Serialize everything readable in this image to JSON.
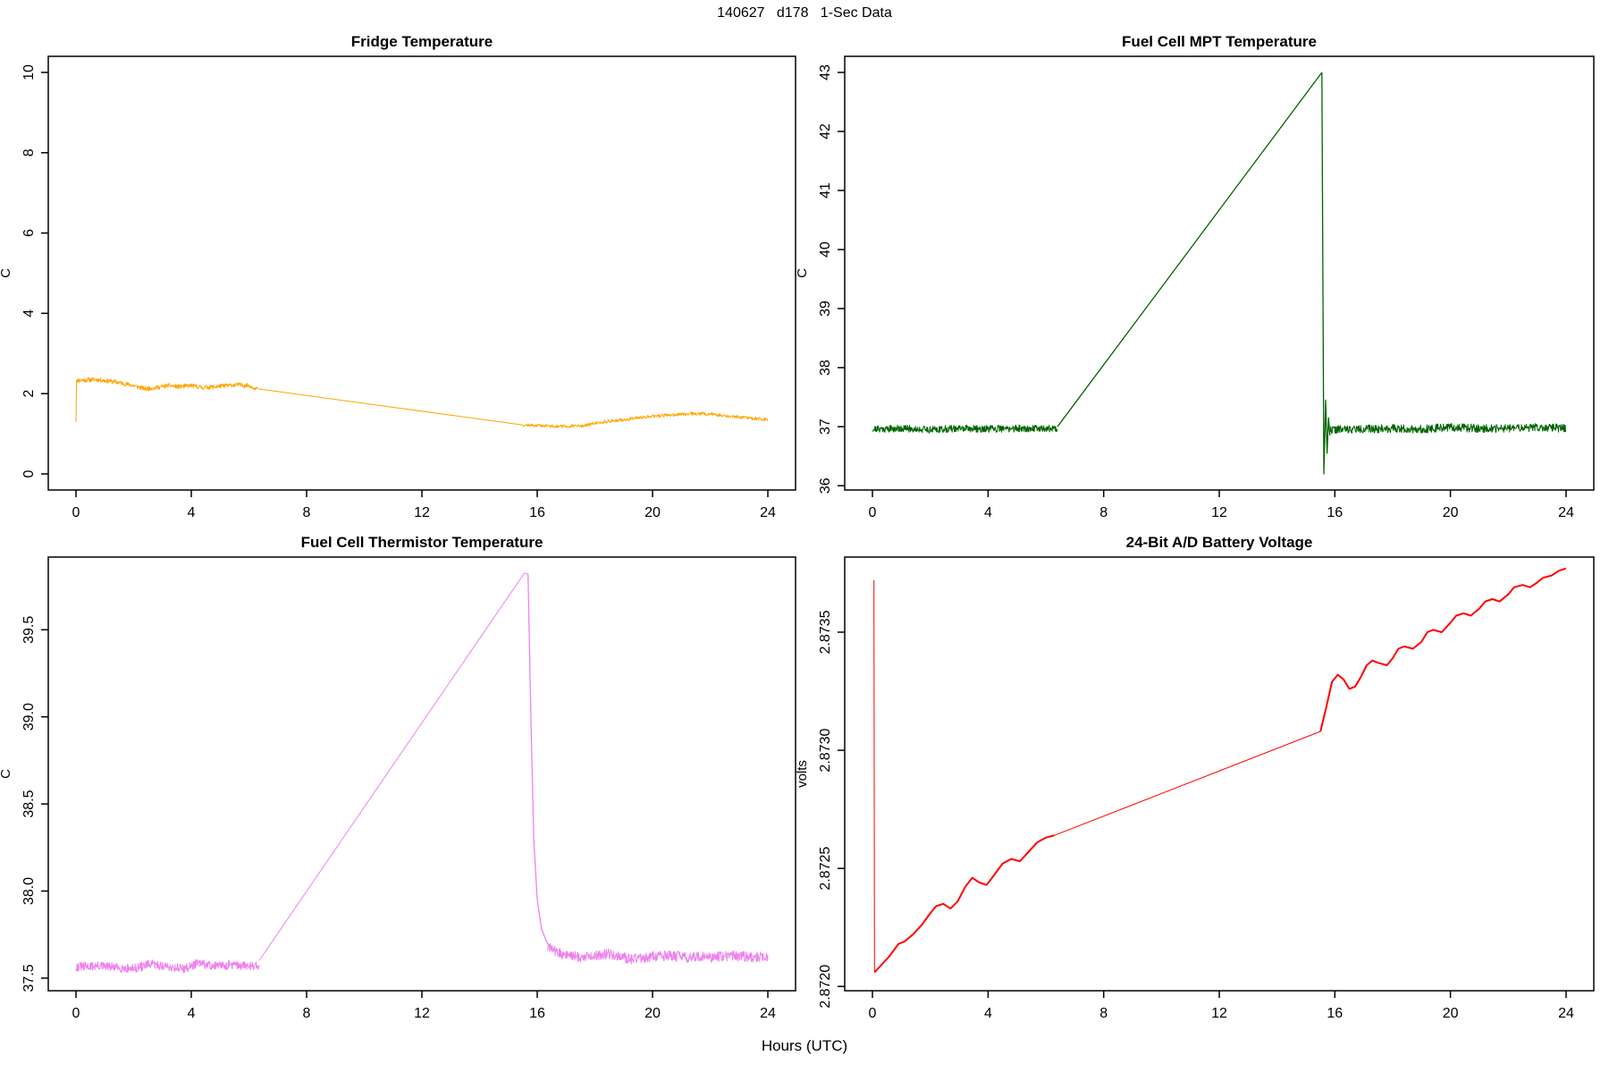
{
  "header": {
    "title": "140627   d178   1-Sec Data"
  },
  "figure": {
    "xlabel": "Hours (UTC)"
  },
  "chart_data": [
    {
      "type": "line",
      "title": "Fridge Temperature",
      "ylabel": "C",
      "color": "#FFA500",
      "xrange": [
        0,
        24
      ],
      "yrange": [
        0,
        10
      ],
      "xticks": [
        0,
        4,
        8,
        12,
        16,
        20,
        24
      ],
      "yticks": [
        {
          "v": 0,
          "l": "0"
        },
        {
          "v": 2,
          "l": "2"
        },
        {
          "v": 4,
          "l": "4"
        },
        {
          "v": 6,
          "l": "6"
        },
        {
          "v": 8,
          "l": "8"
        },
        {
          "v": 10,
          "l": "10"
        }
      ],
      "segments": [
        {
          "kind": "line",
          "width": 1,
          "points": [
            [
              0,
              1.3
            ],
            [
              0.02,
              2.33
            ]
          ]
        },
        {
          "kind": "noise",
          "x0": 0,
          "x1": 6.3,
          "amp": 0.055,
          "n": 450,
          "seed": 11,
          "mean": [
            [
              0,
              2.33
            ],
            [
              0.7,
              2.35
            ],
            [
              1.3,
              2.3
            ],
            [
              2.0,
              2.2
            ],
            [
              2.4,
              2.12
            ],
            [
              2.8,
              2.15
            ],
            [
              3.2,
              2.2
            ],
            [
              3.6,
              2.17
            ],
            [
              4.0,
              2.2
            ],
            [
              4.4,
              2.15
            ],
            [
              4.8,
              2.17
            ],
            [
              5.2,
              2.2
            ],
            [
              5.6,
              2.22
            ],
            [
              6.0,
              2.2
            ],
            [
              6.3,
              2.12
            ]
          ]
        },
        {
          "kind": "line",
          "width": 1,
          "points": [
            [
              6.3,
              2.12
            ],
            [
              15.5,
              1.22
            ]
          ]
        },
        {
          "kind": "noise",
          "x0": 15.5,
          "x1": 24,
          "amp": 0.04,
          "n": 500,
          "seed": 12,
          "mean": [
            [
              15.5,
              1.22
            ],
            [
              16.2,
              1.2
            ],
            [
              17.0,
              1.18
            ],
            [
              17.6,
              1.2
            ],
            [
              18.3,
              1.3
            ],
            [
              19.0,
              1.35
            ],
            [
              19.8,
              1.42
            ],
            [
              20.6,
              1.47
            ],
            [
              21.3,
              1.5
            ],
            [
              21.9,
              1.5
            ],
            [
              22.5,
              1.45
            ],
            [
              23.2,
              1.4
            ],
            [
              23.7,
              1.37
            ],
            [
              24,
              1.35
            ]
          ]
        }
      ]
    },
    {
      "type": "line",
      "title": "Fuel Cell MPT Temperature",
      "ylabel": "C",
      "color": "#006400",
      "xrange": [
        0,
        24
      ],
      "yrange": [
        36.2,
        43
      ],
      "xticks": [
        0,
        4,
        8,
        12,
        16,
        20,
        24
      ],
      "yticks": [
        {
          "v": 36,
          "l": "36"
        },
        {
          "v": 37,
          "l": "37"
        },
        {
          "v": 38,
          "l": "38"
        },
        {
          "v": 39,
          "l": "39"
        },
        {
          "v": 40,
          "l": "40"
        },
        {
          "v": 41,
          "l": "41"
        },
        {
          "v": 42,
          "l": "42"
        },
        {
          "v": 43,
          "l": "43"
        }
      ],
      "segments": [
        {
          "kind": "noise",
          "x0": 0,
          "x1": 6.4,
          "amp": 0.06,
          "n": 520,
          "seed": 21,
          "mean": [
            [
              0,
              36.96
            ],
            [
              1,
              36.97
            ],
            [
              2,
              36.95
            ],
            [
              3,
              36.97
            ],
            [
              4,
              36.96
            ],
            [
              5,
              36.97
            ],
            [
              6.4,
              36.97
            ]
          ]
        },
        {
          "kind": "line",
          "width": 1.3,
          "points": [
            [
              6.4,
              37.0
            ],
            [
              15.55,
              43.0
            ]
          ]
        },
        {
          "kind": "line",
          "width": 1.3,
          "points": [
            [
              15.55,
              43.0
            ],
            [
              15.62,
              36.2
            ],
            [
              15.68,
              37.45
            ],
            [
              15.73,
              36.55
            ],
            [
              15.78,
              37.15
            ],
            [
              15.83,
              36.85
            ]
          ]
        },
        {
          "kind": "noise",
          "x0": 15.83,
          "x1": 24,
          "amp": 0.07,
          "n": 560,
          "seed": 22,
          "mean": [
            [
              15.83,
              36.95
            ],
            [
              17,
              36.96
            ],
            [
              18,
              36.97
            ],
            [
              19,
              36.96
            ],
            [
              20,
              36.99
            ],
            [
              21,
              36.97
            ],
            [
              22,
              36.97
            ],
            [
              23,
              36.99
            ],
            [
              24,
              36.97
            ]
          ]
        }
      ]
    },
    {
      "type": "line",
      "title": "Fuel Cell Thermistor Temperature",
      "ylabel": "C",
      "color": "#EE82EE",
      "xrange": [
        0,
        24
      ],
      "yrange": [
        37.52,
        39.825
      ],
      "xticks": [
        0,
        4,
        8,
        12,
        16,
        20,
        24
      ],
      "yticks": [
        {
          "v": 37.5,
          "l": "37.5"
        },
        {
          "v": 38.0,
          "l": "38.0"
        },
        {
          "v": 38.5,
          "l": "38.5"
        },
        {
          "v": 39.0,
          "l": "39.0"
        },
        {
          "v": 39.5,
          "l": "39.5"
        }
      ],
      "segments": [
        {
          "kind": "noise",
          "x0": 0,
          "x1": 6.35,
          "amp": 0.026,
          "n": 480,
          "seed": 31,
          "mean": [
            [
              0,
              37.565
            ],
            [
              0.8,
              37.57
            ],
            [
              1.4,
              37.56
            ],
            [
              2.0,
              37.555
            ],
            [
              2.6,
              37.58
            ],
            [
              3.2,
              37.565
            ],
            [
              3.8,
              37.555
            ],
            [
              4.2,
              37.585
            ],
            [
              4.8,
              37.57
            ],
            [
              5.4,
              37.575
            ],
            [
              6.0,
              37.57
            ],
            [
              6.35,
              37.575
            ]
          ]
        },
        {
          "kind": "line",
          "width": 1,
          "points": [
            [
              6.35,
              37.6
            ],
            [
              15.45,
              39.8
            ],
            [
              15.55,
              39.825
            ],
            [
              15.68,
              39.82
            ]
          ]
        },
        {
          "kind": "line",
          "width": 1.3,
          "points": [
            [
              15.68,
              39.82
            ],
            [
              15.78,
              39.0
            ],
            [
              15.88,
              38.3
            ],
            [
              16.0,
              37.95
            ],
            [
              16.15,
              37.78
            ],
            [
              16.35,
              37.7
            ],
            [
              16.6,
              37.66
            ]
          ]
        },
        {
          "kind": "noise",
          "x0": 16.35,
          "x1": 24,
          "amp": 0.03,
          "n": 540,
          "seed": 32,
          "mean": [
            [
              16.35,
              37.68
            ],
            [
              16.8,
              37.64
            ],
            [
              17.5,
              37.62
            ],
            [
              18.0,
              37.63
            ],
            [
              18.5,
              37.64
            ],
            [
              19.2,
              37.61
            ],
            [
              19.8,
              37.62
            ],
            [
              20.5,
              37.63
            ],
            [
              21.2,
              37.62
            ],
            [
              22.0,
              37.62
            ],
            [
              22.8,
              37.63
            ],
            [
              23.5,
              37.62
            ],
            [
              24,
              37.625
            ]
          ]
        }
      ]
    },
    {
      "type": "line",
      "title": "24-Bit A/D Battery Voltage",
      "ylabel": "volts",
      "color": "#FF0000",
      "xrange": [
        0,
        24
      ],
      "yrange": [
        2.87205,
        2.87375
      ],
      "xticks": [
        0,
        4,
        8,
        12,
        16,
        20,
        24
      ],
      "yticks": [
        {
          "v": 2.872,
          "l": "2.8720"
        },
        {
          "v": 2.8725,
          "l": "2.8725"
        },
        {
          "v": 2.873,
          "l": "2.8730"
        },
        {
          "v": 2.8735,
          "l": "2.8735"
        }
      ],
      "segments": [
        {
          "kind": "line",
          "width": 1,
          "points": [
            [
              0.05,
              2.87372
            ],
            [
              0.07,
              2.87206
            ]
          ]
        },
        {
          "kind": "line",
          "width": 2,
          "points": [
            [
              0.07,
              2.87206
            ],
            [
              0.3,
              2.87209
            ],
            [
              0.6,
              2.87213
            ],
            [
              0.9,
              2.87218
            ],
            [
              1.1,
              2.87219
            ],
            [
              1.4,
              2.87222
            ],
            [
              1.7,
              2.87226
            ],
            [
              2.0,
              2.87231
            ],
            [
              2.2,
              2.87234
            ],
            [
              2.45,
              2.87235
            ],
            [
              2.7,
              2.87233
            ],
            [
              2.95,
              2.87236
            ],
            [
              3.2,
              2.87242
            ],
            [
              3.45,
              2.87246
            ],
            [
              3.7,
              2.87244
            ],
            [
              3.95,
              2.87243
            ],
            [
              4.2,
              2.87247
            ],
            [
              4.5,
              2.87252
            ],
            [
              4.8,
              2.87254
            ],
            [
              5.1,
              2.87253
            ],
            [
              5.4,
              2.87257
            ],
            [
              5.7,
              2.87261
            ],
            [
              6.0,
              2.87263
            ],
            [
              6.3,
              2.87264
            ]
          ]
        },
        {
          "kind": "line",
          "width": 1,
          "points": [
            [
              6.3,
              2.87264
            ],
            [
              15.5,
              2.87308
            ]
          ]
        },
        {
          "kind": "line",
          "width": 2,
          "points": [
            [
              15.5,
              2.87308
            ],
            [
              15.7,
              2.87318
            ],
            [
              15.9,
              2.87329
            ],
            [
              16.1,
              2.87332
            ],
            [
              16.3,
              2.8733
            ],
            [
              16.5,
              2.87326
            ],
            [
              16.7,
              2.87327
            ],
            [
              16.9,
              2.87331
            ],
            [
              17.1,
              2.87336
            ],
            [
              17.3,
              2.87338
            ],
            [
              17.5,
              2.87337
            ],
            [
              17.8,
              2.87336
            ],
            [
              18.0,
              2.87339
            ],
            [
              18.2,
              2.87343
            ],
            [
              18.4,
              2.87344
            ],
            [
              18.7,
              2.87343
            ],
            [
              19.0,
              2.87346
            ],
            [
              19.2,
              2.8735
            ],
            [
              19.4,
              2.87351
            ],
            [
              19.7,
              2.8735
            ],
            [
              20.0,
              2.87354
            ],
            [
              20.2,
              2.87357
            ],
            [
              20.45,
              2.87358
            ],
            [
              20.7,
              2.87357
            ],
            [
              21.0,
              2.8736
            ],
            [
              21.2,
              2.87363
            ],
            [
              21.45,
              2.87364
            ],
            [
              21.7,
              2.87363
            ],
            [
              22.0,
              2.87366
            ],
            [
              22.2,
              2.87369
            ],
            [
              22.5,
              2.8737
            ],
            [
              22.75,
              2.87369
            ],
            [
              23.0,
              2.87371
            ],
            [
              23.2,
              2.87373
            ],
            [
              23.5,
              2.87374
            ],
            [
              23.75,
              2.87376
            ],
            [
              24,
              2.87377
            ]
          ]
        }
      ]
    }
  ]
}
